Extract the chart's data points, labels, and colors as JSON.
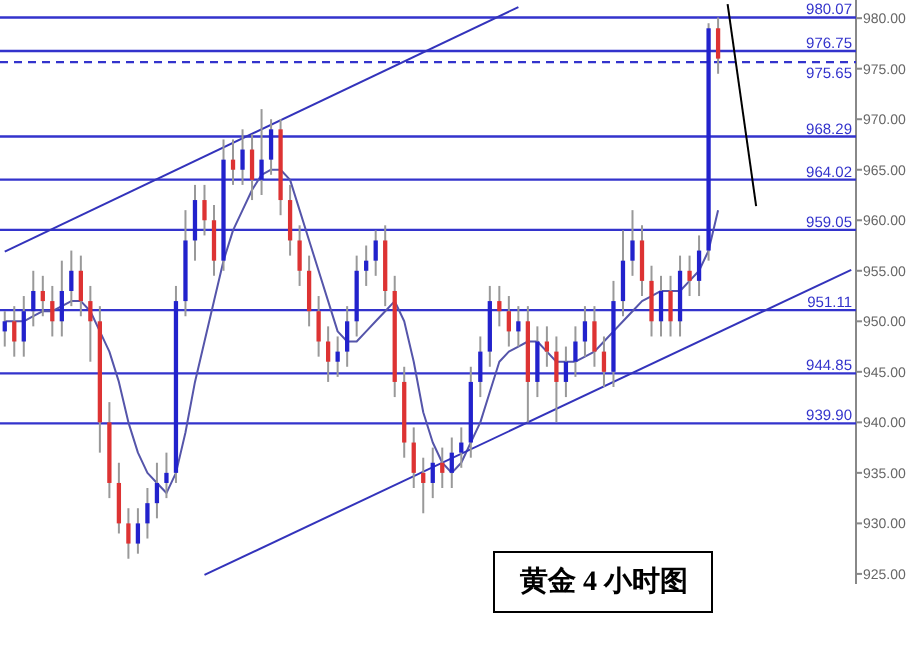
{
  "chart_data": {
    "type": "candlestick",
    "categories": [
      null,
      null,
      null,
      null,
      null,
      null,
      null,
      null,
      null,
      null,
      null,
      null,
      null,
      null,
      null,
      null,
      null,
      null,
      null,
      null,
      null,
      null,
      null,
      null,
      null,
      null,
      null,
      null,
      null,
      null,
      null,
      null,
      null,
      null,
      null,
      null,
      null,
      null,
      null,
      null,
      null,
      null,
      null,
      null,
      null,
      null,
      null,
      null,
      null,
      null,
      null,
      null,
      null,
      null,
      null,
      null,
      null,
      null,
      null,
      null,
      null,
      null,
      null,
      null,
      null,
      null,
      null,
      null,
      null,
      null,
      null,
      null,
      null,
      null,
      null,
      null,
      null,
      null,
      null,
      null,
      null,
      null,
      null,
      null,
      null,
      null,
      null,
      null,
      null,
      null
    ],
    "ohlc": [
      [
        949,
        951,
        947.5,
        950
      ],
      [
        950,
        951.5,
        946.5,
        948
      ],
      [
        948,
        952.5,
        946.5,
        951
      ],
      [
        951,
        955,
        949.5,
        953
      ],
      [
        953,
        954.5,
        950.5,
        952
      ],
      [
        952,
        953.5,
        948.5,
        950
      ],
      [
        950,
        956,
        948.5,
        953
      ],
      [
        953,
        957,
        951.5,
        955
      ],
      [
        955,
        956.5,
        950.5,
        952
      ],
      [
        952,
        953.5,
        946,
        950
      ],
      [
        950,
        951.5,
        937,
        940
      ],
      [
        940,
        942,
        932.5,
        934
      ],
      [
        934,
        936,
        929,
        930
      ],
      [
        930,
        931.5,
        926.5,
        928
      ],
      [
        928,
        931.5,
        927,
        930
      ],
      [
        930,
        933.5,
        928.5,
        932
      ],
      [
        932,
        936,
        930.5,
        934
      ],
      [
        934,
        937,
        932.5,
        935
      ],
      [
        935,
        953.5,
        934,
        952
      ],
      [
        952,
        961,
        950.5,
        958
      ],
      [
        958,
        963.5,
        956,
        962
      ],
      [
        962,
        963.5,
        958.5,
        960
      ],
      [
        960,
        961.5,
        954.5,
        956
      ],
      [
        956,
        968,
        955,
        966
      ],
      [
        966,
        968,
        963.5,
        965
      ],
      [
        965,
        969,
        963.5,
        967
      ],
      [
        967,
        968.5,
        962,
        964
      ],
      [
        964,
        971,
        962.5,
        966
      ],
      [
        966,
        970,
        964.5,
        969
      ],
      [
        969,
        970,
        960.5,
        962
      ],
      [
        962,
        963.5,
        956.5,
        958
      ],
      [
        958,
        959.5,
        953.5,
        955
      ],
      [
        955,
        956.5,
        949.5,
        951
      ],
      [
        951,
        952.5,
        946.5,
        948
      ],
      [
        948,
        949.5,
        944,
        946
      ],
      [
        946,
        948.5,
        944.5,
        947
      ],
      [
        947,
        951.5,
        945.5,
        950
      ],
      [
        950,
        956.5,
        948.5,
        955
      ],
      [
        955,
        957.5,
        953.5,
        956
      ],
      [
        956,
        959,
        954.5,
        958
      ],
      [
        958,
        959.5,
        951.5,
        953
      ],
      [
        953,
        954.5,
        942.5,
        944
      ],
      [
        944,
        945.5,
        936.5,
        938
      ],
      [
        938,
        939.5,
        933.5,
        935
      ],
      [
        935,
        936.5,
        931,
        934
      ],
      [
        934,
        937.5,
        932.5,
        936
      ],
      [
        936,
        937.5,
        933.5,
        935
      ],
      [
        935,
        938.5,
        933.5,
        937
      ],
      [
        937,
        939.5,
        935.5,
        938
      ],
      [
        938,
        945.5,
        936.5,
        944
      ],
      [
        944,
        948.5,
        942.5,
        947
      ],
      [
        947,
        953.5,
        945.5,
        952
      ],
      [
        952,
        953.5,
        949.5,
        951
      ],
      [
        951,
        952.5,
        947.5,
        949
      ],
      [
        949,
        951.5,
        947.5,
        950
      ],
      [
        950,
        951.5,
        940,
        944
      ],
      [
        944,
        949.5,
        942.5,
        948
      ],
      [
        948,
        949.5,
        945.5,
        947
      ],
      [
        947,
        948.5,
        940,
        944
      ],
      [
        944,
        947.5,
        942.5,
        946
      ],
      [
        946,
        949.5,
        944.5,
        948
      ],
      [
        948,
        951.5,
        946.5,
        950
      ],
      [
        950,
        951.5,
        945.5,
        947
      ],
      [
        947,
        948.5,
        943.5,
        945
      ],
      [
        945,
        954,
        943.5,
        952
      ],
      [
        952,
        959,
        950.5,
        956
      ],
      [
        956,
        961,
        954.5,
        958
      ],
      [
        958,
        959.5,
        952.5,
        954
      ],
      [
        954,
        955.5,
        948.5,
        950
      ],
      [
        950,
        954.5,
        948.5,
        953
      ],
      [
        953,
        954.5,
        948.5,
        950
      ],
      [
        950,
        956.5,
        948.5,
        955
      ],
      [
        955,
        956.5,
        952.5,
        954
      ],
      [
        954,
        958.5,
        952.5,
        957
      ],
      [
        957,
        979.5,
        956,
        979
      ],
      [
        979,
        980.07,
        974.5,
        976
      ],
      null,
      null,
      null,
      null,
      null,
      null,
      null,
      null,
      null,
      null,
      null,
      null,
      null,
      null
    ],
    "series": [
      {
        "type": "line",
        "color": "#5555aa",
        "values": [
          950,
          950,
          950,
          950.5,
          951,
          951,
          951.5,
          952,
          952,
          951,
          949,
          947,
          944,
          940,
          937,
          935,
          934,
          933,
          935,
          939,
          944,
          948,
          952,
          956,
          959,
          961,
          963,
          964.5,
          965,
          965,
          964,
          961,
          958,
          955,
          952,
          949,
          948,
          948,
          949,
          950,
          951,
          952,
          950,
          946,
          941,
          938,
          936,
          935,
          936,
          938,
          940,
          943,
          946,
          947,
          947.5,
          948,
          948,
          947,
          946,
          946,
          946,
          946.5,
          947,
          948,
          949,
          950,
          951,
          952,
          952.5,
          953,
          953,
          953,
          954,
          955,
          957,
          961,
          null,
          null,
          null,
          null,
          null,
          null,
          null,
          null,
          null,
          null,
          null,
          null,
          null,
          null
        ]
      },
      {
        "type": "line",
        "color": "#3333bb",
        "values": [
          956.9,
          null,
          null,
          null,
          null,
          null,
          null,
          null,
          null,
          null,
          null,
          null,
          null,
          null,
          null,
          null,
          null,
          null,
          null,
          null,
          null,
          null,
          null,
          null,
          null,
          null,
          null,
          null,
          null,
          null,
          null,
          null,
          null,
          null,
          null,
          null,
          null,
          null,
          null,
          null,
          null,
          null,
          null,
          null,
          null,
          null,
          null,
          null,
          null,
          null,
          null,
          null,
          null,
          null,
          981.1,
          null,
          null,
          null,
          null,
          null,
          null,
          null,
          null,
          null,
          null,
          null,
          null,
          null,
          null,
          null,
          null,
          null,
          null,
          null,
          null,
          null,
          null,
          null,
          null,
          null,
          null,
          null,
          null,
          null,
          null,
          null,
          null,
          null,
          null,
          null
        ]
      },
      {
        "type": "line",
        "color": "#3333bb",
        "values": [
          null,
          null,
          null,
          null,
          null,
          null,
          null,
          null,
          null,
          null,
          null,
          null,
          null,
          null,
          null,
          null,
          null,
          null,
          null,
          null,
          null,
          924.9,
          null,
          null,
          null,
          null,
          null,
          null,
          null,
          null,
          null,
          null,
          null,
          null,
          null,
          null,
          null,
          null,
          null,
          null,
          null,
          null,
          null,
          null,
          null,
          null,
          null,
          null,
          null,
          null,
          null,
          null,
          null,
          null,
          null,
          null,
          null,
          null,
          null,
          null,
          null,
          null,
          null,
          null,
          null,
          null,
          null,
          null,
          null,
          null,
          null,
          null,
          null,
          null,
          null,
          null,
          null,
          null,
          null,
          null,
          null,
          null,
          null,
          null,
          null,
          null,
          null,
          null,
          null,
          955.1
        ]
      },
      {
        "type": "line",
        "color": "#000000",
        "values": [
          null,
          null,
          null,
          null,
          null,
          null,
          null,
          null,
          null,
          null,
          null,
          null,
          null,
          null,
          null,
          null,
          null,
          null,
          null,
          null,
          null,
          null,
          null,
          null,
          null,
          null,
          null,
          null,
          null,
          null,
          null,
          null,
          null,
          null,
          null,
          null,
          null,
          null,
          null,
          null,
          null,
          null,
          null,
          null,
          null,
          null,
          null,
          null,
          null,
          null,
          null,
          null,
          null,
          null,
          null,
          null,
          null,
          null,
          null,
          null,
          null,
          null,
          null,
          null,
          null,
          null,
          null,
          null,
          null,
          null,
          null,
          null,
          null,
          null,
          null,
          null,
          981.4,
          null,
          null,
          961.4,
          null,
          null,
          null,
          null,
          null,
          null,
          null,
          null,
          null,
          null
        ]
      }
    ],
    "ylim": [
      924,
      981.8
    ],
    "yticks": [
      {
        "value": 925,
        "label": "925.00"
      },
      {
        "value": 930,
        "label": "930.00"
      },
      {
        "value": 935,
        "label": "935.00"
      },
      {
        "value": 940,
        "label": "940.00"
      },
      {
        "value": 945,
        "label": "945.00"
      },
      {
        "value": 950,
        "label": "950.00"
      },
      {
        "value": 955,
        "label": "955.00"
      },
      {
        "value": 960,
        "label": "960.00"
      },
      {
        "value": 965,
        "label": "965.00"
      },
      {
        "value": 970,
        "label": "970.00"
      },
      {
        "value": 975,
        "label": "975.00"
      },
      {
        "value": 980,
        "label": "980.00"
      }
    ],
    "tick_labels": "y",
    "ref_lines": [
      {
        "axis": "y",
        "value": 980.07,
        "label": "980.07",
        "color": "#3333cc"
      },
      {
        "axis": "y",
        "value": 976.75,
        "label": "976.75",
        "color": "#3333cc"
      },
      {
        "axis": "y",
        "value": 975.65,
        "label": "975.65",
        "color": "#3333cc",
        "line_style": "dashed"
      },
      {
        "axis": "y",
        "value": 968.29,
        "label": "968.29",
        "color": "#3333cc"
      },
      {
        "axis": "y",
        "value": 964.02,
        "label": "964.02",
        "color": "#3333cc"
      },
      {
        "axis": "y",
        "value": 959.05,
        "label": "959.05",
        "color": "#3333cc"
      },
      {
        "axis": "y",
        "value": 951.11,
        "label": "951.11",
        "color": "#3333cc"
      },
      {
        "axis": "y",
        "value": 944.85,
        "label": "944.85",
        "color": "#3333cc"
      },
      {
        "axis": "y",
        "value": 939.9,
        "label": "939.90",
        "color": "#3333cc"
      }
    ],
    "annotations": [
      "黄金 4 小时图"
    ]
  }
}
